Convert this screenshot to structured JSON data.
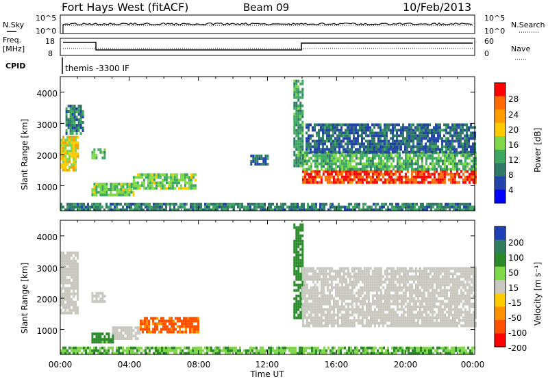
{
  "header": {
    "title": "Fort Hays West (fitACF)",
    "beam": "Beam 09",
    "date": "10/Feb/2013"
  },
  "noise_panel": {
    "left_label": "N.Sky",
    "left_ticks": [
      "10^5",
      "10^0"
    ],
    "right_ticks": [
      "10^5",
      "10^0"
    ],
    "right_label": "N.Search"
  },
  "freq_panel": {
    "left_label_1": "Freq.",
    "left_label_2": "[MHz]",
    "left_ticks": [
      "18",
      "8"
    ],
    "right_ticks": [
      "60",
      "0"
    ],
    "right_label": "Nave"
  },
  "cpid": {
    "label": "CPID",
    "value": "themis -3300 IF"
  },
  "axes": {
    "ylabel": "Slant Range [km]",
    "yticks": [
      "4000",
      "3000",
      "2000",
      "1000"
    ],
    "xticks": [
      "00:00",
      "04:00",
      "08:00",
      "12:00",
      "16:00",
      "20:00",
      "00:00"
    ],
    "xlabel": "Time UT"
  },
  "power_bar": {
    "label": "Power [dB]",
    "ticks": [
      "28",
      "24",
      "20",
      "16",
      "12",
      "8",
      "4"
    ],
    "colors": [
      "#ff0000",
      "#ff6a00",
      "#ff9c00",
      "#ffcc00",
      "#7fd84a",
      "#3fa860",
      "#2e7a66",
      "#2244aa",
      "#0000ff"
    ]
  },
  "velocity_bar": {
    "label": "Velocity [m s⁻¹]",
    "ticks": [
      "200",
      "100",
      "50",
      "15",
      "-15",
      "-50",
      "-100",
      "-200"
    ],
    "colors": [
      "#1f3fb8",
      "#2f7f5f",
      "#2a8a2a",
      "#7fd84a",
      "#c8c8c0",
      "#ffcc00",
      "#ff9000",
      "#ff5000",
      "#ff0000"
    ]
  },
  "chart_data": [
    {
      "type": "heatmap",
      "name": "Power",
      "xlabel": "Time UT",
      "ylabel": "Slant Range [km]",
      "xlim_hours": [
        0,
        24
      ],
      "ylim_km": [
        200,
        4500
      ],
      "xticks": [
        "00:00",
        "04:00",
        "08:00",
        "12:00",
        "16:00",
        "20:00",
        "00:00"
      ],
      "colorbar": {
        "label": "Power [dB]",
        "range": [
          0,
          30
        ]
      },
      "regions": [
        {
          "t": [
            0.0,
            1.0
          ],
          "r": [
            1500,
            2600
          ],
          "value_db": 18
        },
        {
          "t": [
            0.3,
            1.3
          ],
          "r": [
            2700,
            3600
          ],
          "value_db": 8
        },
        {
          "t": [
            1.8,
            2.6
          ],
          "r": [
            1900,
            2200
          ],
          "value_db": 12
        },
        {
          "t": [
            1.8,
            4.2
          ],
          "r": [
            700,
            1100
          ],
          "value_db": 14
        },
        {
          "t": [
            4.2,
            7.8
          ],
          "r": [
            900,
            1400
          ],
          "value_db": 14
        },
        {
          "t": [
            11.0,
            12.0
          ],
          "r": [
            1700,
            2000
          ],
          "value_db": 6
        },
        {
          "t": [
            13.5,
            14.0
          ],
          "r": [
            1600,
            4400
          ],
          "value_db": 10
        },
        {
          "t": [
            14.0,
            24.0
          ],
          "r": [
            1100,
            1500
          ],
          "value_db": 28
        },
        {
          "t": [
            14.0,
            24.0
          ],
          "r": [
            1500,
            2100
          ],
          "value_db": 12
        },
        {
          "t": [
            14.2,
            24.0
          ],
          "r": [
            2100,
            3000
          ],
          "value_db": 6
        },
        {
          "t": [
            0.0,
            24.0
          ],
          "r": [
            200,
            450
          ],
          "value_db": 8
        }
      ]
    },
    {
      "type": "heatmap",
      "name": "Velocity",
      "xlabel": "Time UT",
      "ylabel": "Slant Range [km]",
      "xlim_hours": [
        0,
        24
      ],
      "ylim_km": [
        200,
        4500
      ],
      "xticks": [
        "00:00",
        "04:00",
        "08:00",
        "12:00",
        "16:00",
        "20:00",
        "00:00"
      ],
      "colorbar": {
        "label": "Velocity [m s⁻¹]",
        "range": [
          -200,
          200
        ]
      },
      "regions": [
        {
          "t": [
            0.0,
            1.0
          ],
          "r": [
            1500,
            3500
          ],
          "value_ms": 0
        },
        {
          "t": [
            1.8,
            2.6
          ],
          "r": [
            1900,
            2200
          ],
          "value_ms": 0
        },
        {
          "t": [
            1.8,
            3.0
          ],
          "r": [
            600,
            900
          ],
          "value_ms": 40
        },
        {
          "t": [
            3.0,
            4.6
          ],
          "r": [
            700,
            1100
          ],
          "value_ms": 0
        },
        {
          "t": [
            4.6,
            8.0
          ],
          "r": [
            900,
            1400
          ],
          "value_ms": -80
        },
        {
          "t": [
            13.5,
            14.0
          ],
          "r": [
            1400,
            4400
          ],
          "value_ms": 60
        },
        {
          "t": [
            14.0,
            24.0
          ],
          "r": [
            1100,
            3000
          ],
          "value_ms": 0
        },
        {
          "t": [
            0.0,
            24.0
          ],
          "r": [
            200,
            450
          ],
          "value_ms": 30
        }
      ]
    }
  ]
}
